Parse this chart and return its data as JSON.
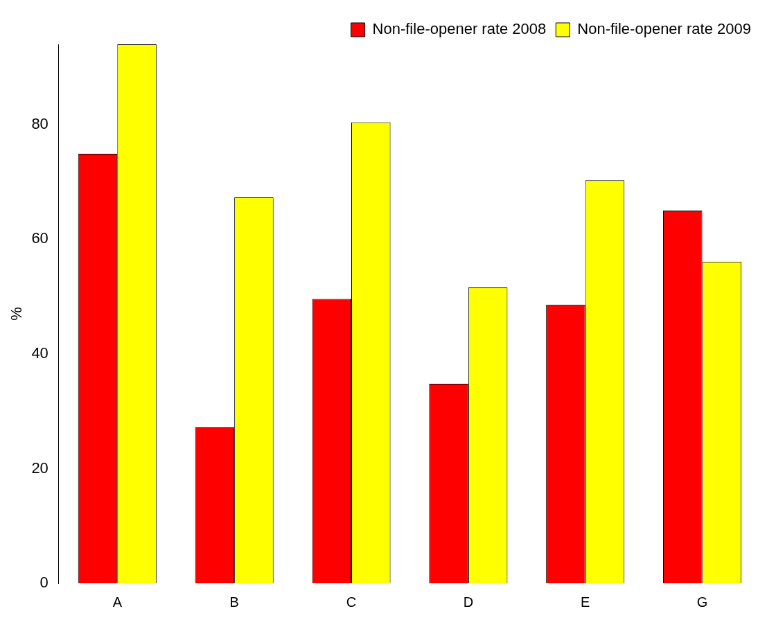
{
  "chart_data": {
    "type": "bar",
    "ylabel": "%",
    "categories": [
      "A",
      "B",
      "C",
      "D",
      "E",
      "G"
    ],
    "series": [
      {
        "name": "Non-file-opener rate 2008",
        "color": "#ff0000",
        "values": [
          74.9,
          27.2,
          49.6,
          34.8,
          48.6,
          65.0
        ]
      },
      {
        "name": "Non-file-opener rate 2009",
        "color": "#ffff00",
        "values": [
          94.0,
          67.3,
          80.4,
          51.6,
          70.3,
          56.1
        ]
      }
    ],
    "ylim": [
      0,
      94
    ],
    "yticks": [
      0,
      20,
      40,
      60,
      80
    ],
    "legend": "top right"
  }
}
